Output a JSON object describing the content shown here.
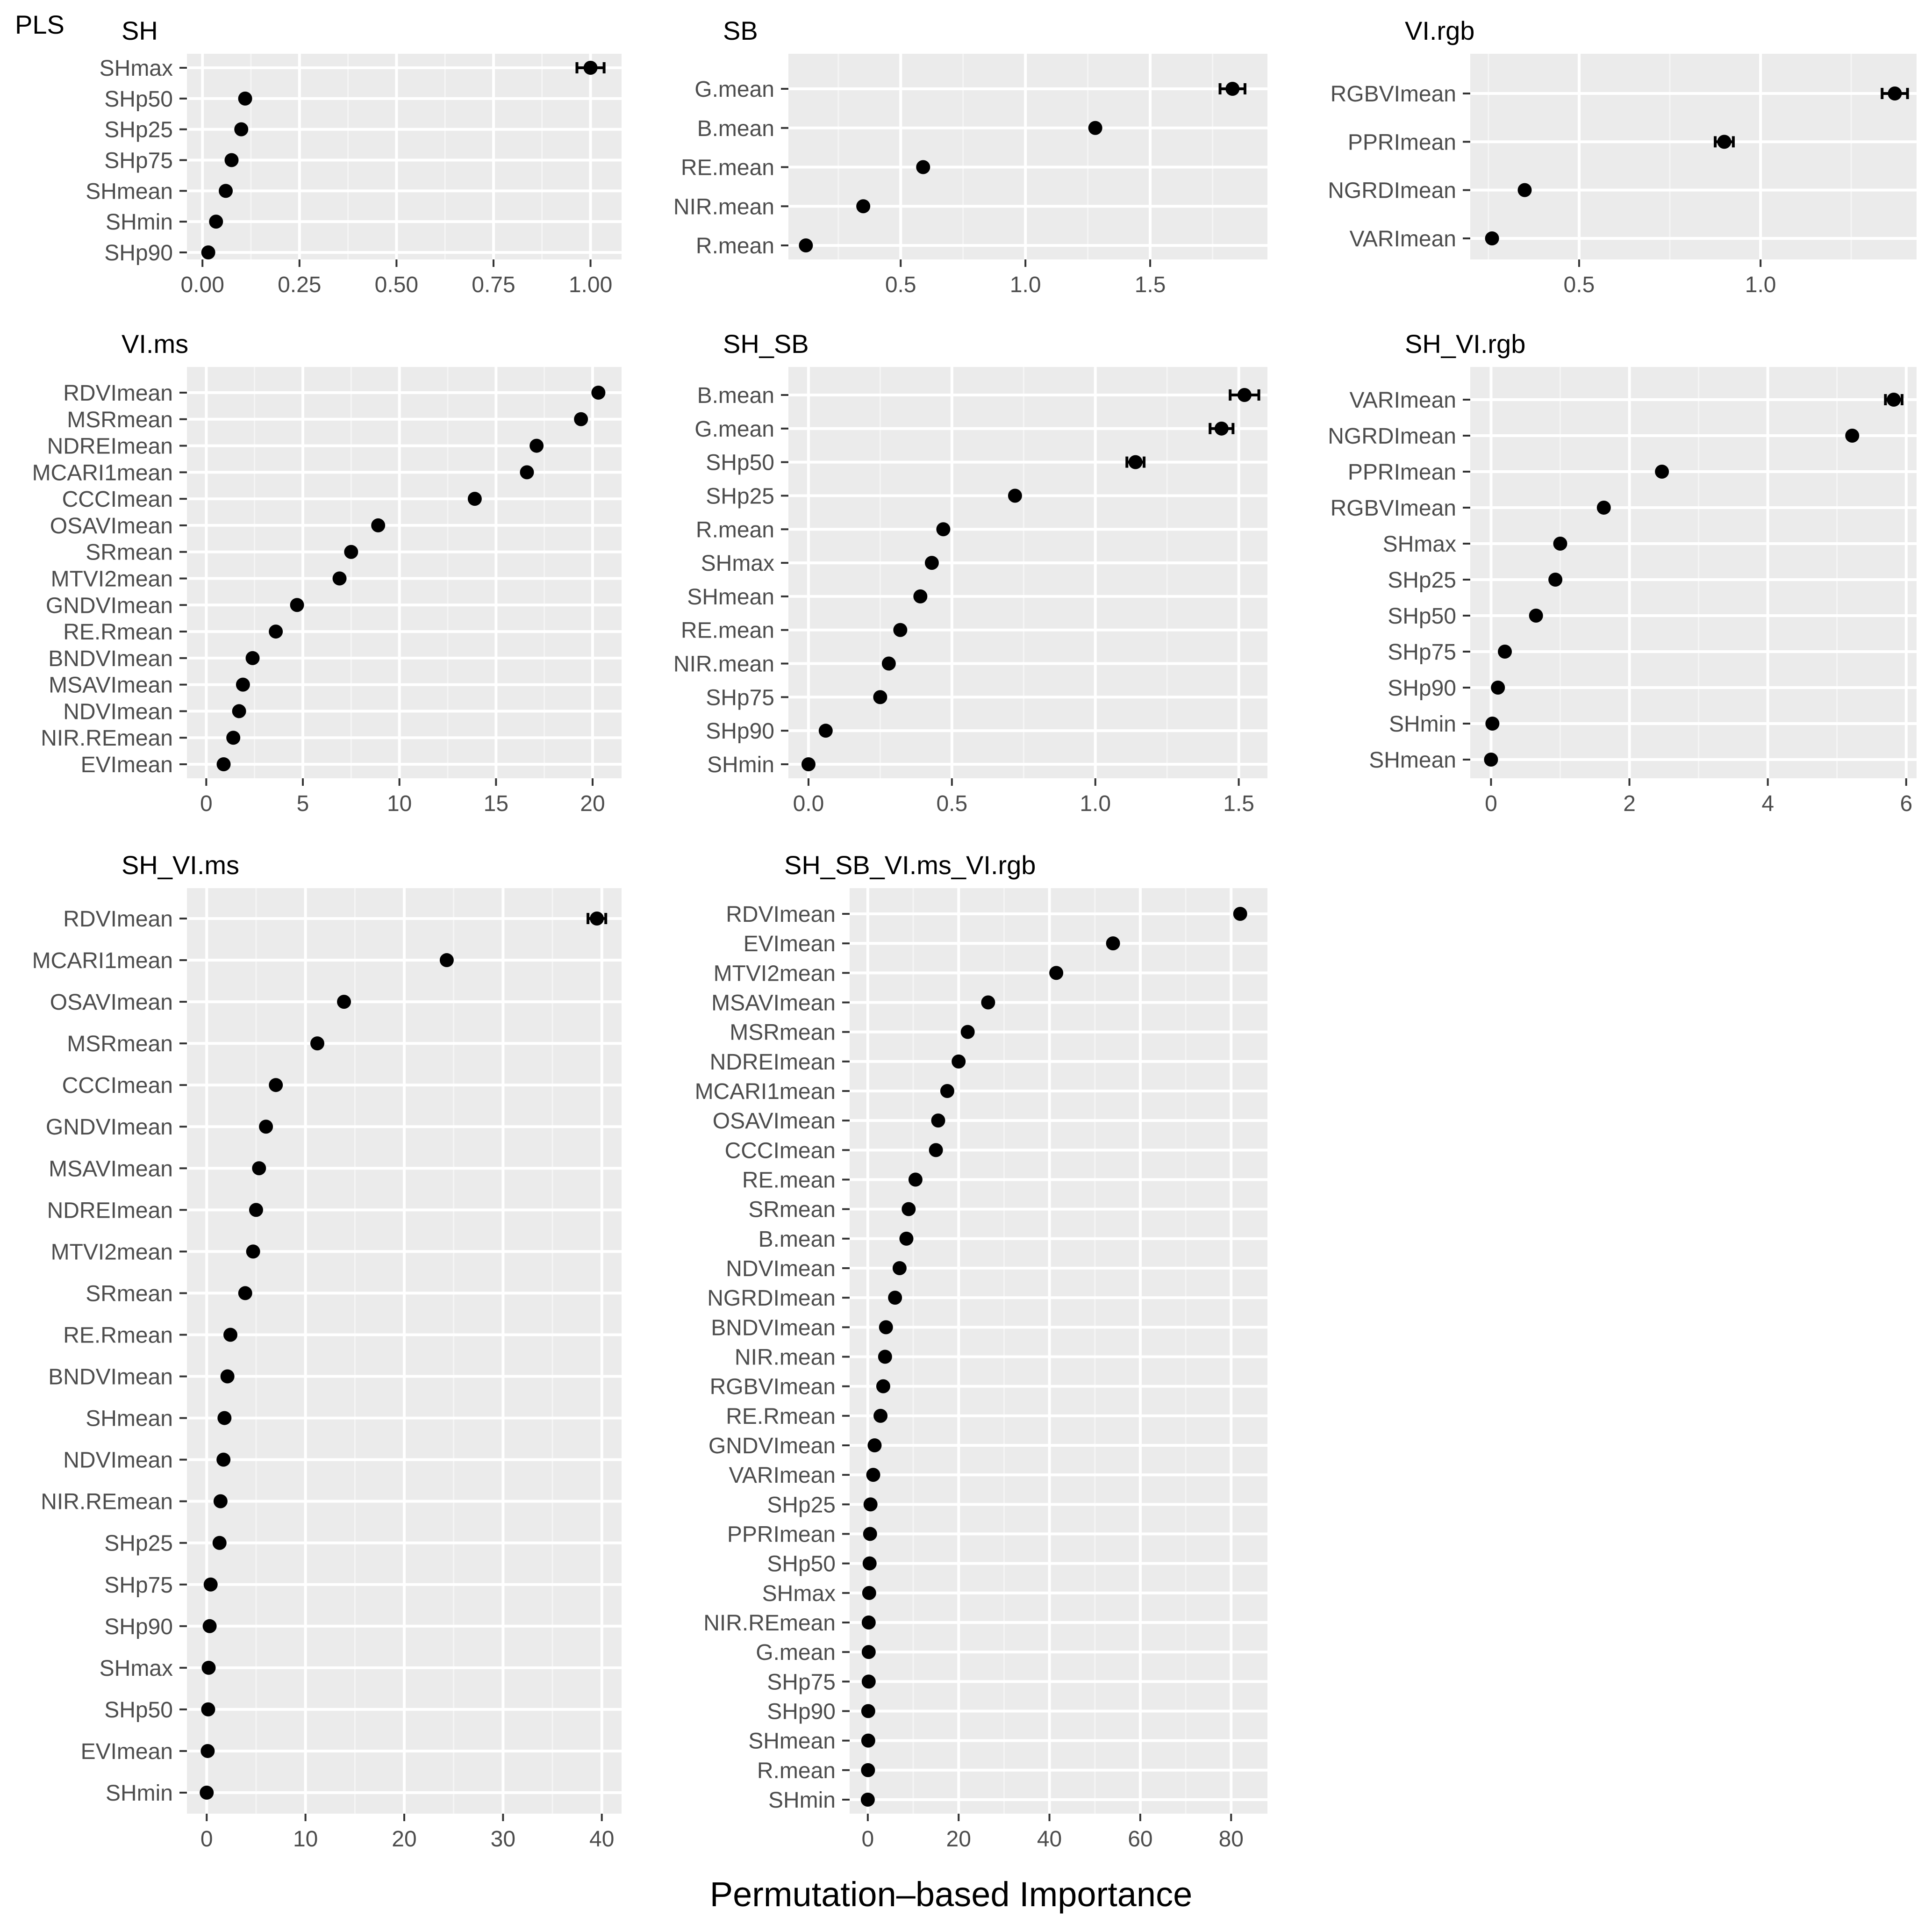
{
  "figure": {
    "tag": "PLS",
    "xlabel": "Permutation–based Importance"
  },
  "colors": {
    "panel_background": "#ebebeb",
    "grid_major": "#ffffff",
    "grid_minor": "#f5f5f5",
    "point": "#000000",
    "label_text": "#4d4d4d",
    "title_text": "#000000"
  },
  "chart_data": [
    {
      "type": "scatter",
      "title": "SH",
      "xlim": [
        -0.04,
        1.08
      ],
      "xticks": [
        0,
        0.25,
        0.5,
        0.75,
        1.0
      ],
      "xtick_labels": [
        "0.00",
        "0.25",
        "0.50",
        "0.75",
        "1.00"
      ],
      "features": [
        "SHmax",
        "SHp50",
        "SHp25",
        "SHp75",
        "SHmean",
        "SHmin",
        "SHp90"
      ],
      "values": [
        1.0,
        0.11,
        0.1,
        0.075,
        0.06,
        0.035,
        0.015
      ],
      "error": [
        0.035,
        0,
        0,
        0,
        0,
        0,
        0
      ]
    },
    {
      "type": "scatter",
      "title": "SB",
      "xlim": [
        0.05,
        1.97
      ],
      "xticks": [
        0.5,
        1.0,
        1.5
      ],
      "xtick_labels": [
        "0.5",
        "1.0",
        "1.5"
      ],
      "features": [
        "G.mean",
        "B.mean",
        "RE.mean",
        "NIR.mean",
        "R.mean"
      ],
      "values": [
        1.83,
        1.28,
        0.59,
        0.35,
        0.12
      ],
      "error": [
        0.05,
        0,
        0,
        0,
        0
      ]
    },
    {
      "type": "scatter",
      "title": "VI.rgb",
      "xlim": [
        0.2,
        1.43
      ],
      "xticks": [
        0.5,
        1.0
      ],
      "xtick_labels": [
        "0.5",
        "1.0"
      ],
      "features": [
        "RGBVImean",
        "PPRImean",
        "NGRDImean",
        "VARImean"
      ],
      "values": [
        1.37,
        0.9,
        0.35,
        0.26
      ],
      "error": [
        0.035,
        0.025,
        0,
        0
      ]
    },
    {
      "type": "scatter",
      "title": "VI.ms",
      "xlim": [
        -1,
        21.5
      ],
      "xticks": [
        0,
        5,
        10,
        15,
        20
      ],
      "xtick_labels": [
        "0",
        "5",
        "10",
        "15",
        "20"
      ],
      "features": [
        "RDVImean",
        "MSRmean",
        "NDREImean",
        "MCARI1mean",
        "CCCImean",
        "OSAVImean",
        "SRmean",
        "MTVI2mean",
        "GNDVImean",
        "RE.Rmean",
        "BNDVImean",
        "MSAVImean",
        "NDVImean",
        "NIR.REmean",
        "EVImean"
      ],
      "values": [
        20.3,
        19.4,
        17.1,
        16.6,
        13.9,
        8.9,
        7.5,
        6.9,
        4.7,
        3.6,
        2.4,
        1.9,
        1.7,
        1.4,
        0.9
      ],
      "error": [
        0,
        0,
        0,
        0,
        0,
        0,
        0,
        0,
        0,
        0,
        0,
        0,
        0,
        0,
        0
      ]
    },
    {
      "type": "scatter",
      "title": "SH_SB",
      "xlim": [
        -0.07,
        1.6
      ],
      "xticks": [
        0,
        0.5,
        1.0,
        1.5
      ],
      "xtick_labels": [
        "0.0",
        "0.5",
        "1.0",
        "1.5"
      ],
      "features": [
        "B.mean",
        "G.mean",
        "SHp50",
        "SHp25",
        "R.mean",
        "SHmax",
        "SHmean",
        "RE.mean",
        "NIR.mean",
        "SHp75",
        "SHp90",
        "SHmin"
      ],
      "values": [
        1.52,
        1.44,
        1.14,
        0.72,
        0.47,
        0.43,
        0.39,
        0.32,
        0.28,
        0.25,
        0.06,
        0.0
      ],
      "error": [
        0.05,
        0.04,
        0.03,
        0,
        0,
        0,
        0,
        0,
        0,
        0,
        0,
        0
      ]
    },
    {
      "type": "scatter",
      "title": "SH_VI.rgb",
      "xlim": [
        -0.3,
        6.15
      ],
      "xticks": [
        0,
        2,
        4,
        6
      ],
      "xtick_labels": [
        "0",
        "2",
        "4",
        "6"
      ],
      "features": [
        "VARImean",
        "NGRDImean",
        "PPRImean",
        "RGBVImean",
        "SHmax",
        "SHp25",
        "SHp50",
        "SHp75",
        "SHp90",
        "SHmin",
        "SHmean"
      ],
      "values": [
        5.82,
        5.22,
        2.47,
        1.63,
        1.0,
        0.93,
        0.65,
        0.2,
        0.1,
        0.02,
        0.0
      ],
      "error": [
        0.12,
        0,
        0,
        0,
        0,
        0,
        0,
        0,
        0,
        0,
        0
      ]
    },
    {
      "type": "scatter",
      "title": "SH_VI.ms",
      "xlim": [
        -2,
        42
      ],
      "xticks": [
        0,
        10,
        20,
        30,
        40
      ],
      "xtick_labels": [
        "0",
        "10",
        "20",
        "30",
        "40"
      ],
      "features": [
        "RDVImean",
        "MCARI1mean",
        "OSAVImean",
        "MSRmean",
        "CCCImean",
        "GNDVImean",
        "MSAVImean",
        "NDREImean",
        "MTVI2mean",
        "SRmean",
        "RE.Rmean",
        "BNDVImean",
        "SHmean",
        "NDVImean",
        "NIR.REmean",
        "SHp25",
        "SHp75",
        "SHp90",
        "SHmax",
        "SHp50",
        "EVImean",
        "SHmin"
      ],
      "values": [
        39.5,
        24.3,
        13.9,
        11.2,
        7.0,
        6.0,
        5.3,
        5.0,
        4.7,
        3.9,
        2.4,
        2.1,
        1.8,
        1.7,
        1.4,
        1.3,
        0.4,
        0.3,
        0.2,
        0.15,
        0.1,
        0.0
      ],
      "error": [
        0.9,
        0,
        0,
        0,
        0,
        0,
        0,
        0,
        0,
        0,
        0,
        0,
        0,
        0,
        0,
        0,
        0,
        0,
        0,
        0,
        0,
        0
      ]
    },
    {
      "type": "scatter",
      "title": "SH_SB_VI.ms_VI.rgb",
      "xlim": [
        -4,
        88
      ],
      "xticks": [
        0,
        20,
        40,
        60,
        80
      ],
      "xtick_labels": [
        "0",
        "20",
        "40",
        "60",
        "80"
      ],
      "features": [
        "RDVImean",
        "EVImean",
        "MTVI2mean",
        "MSAVImean",
        "MSRmean",
        "NDREImean",
        "MCARI1mean",
        "OSAVImean",
        "CCCImean",
        "RE.mean",
        "SRmean",
        "B.mean",
        "NDVImean",
        "NGRDImean",
        "BNDVImean",
        "NIR.mean",
        "RGBVImean",
        "RE.Rmean",
        "GNDVImean",
        "VARImean",
        "SHp25",
        "PPRImean",
        "SHp50",
        "SHmax",
        "NIR.REmean",
        "G.mean",
        "SHp75",
        "SHp90",
        "SHmean",
        "R.mean",
        "SHmin"
      ],
      "values": [
        82,
        54,
        41.5,
        26.5,
        22,
        20,
        17.5,
        15.5,
        15,
        10.5,
        9,
        8.5,
        7,
        6,
        4,
        3.8,
        3.4,
        2.8,
        1.5,
        1.2,
        0.6,
        0.5,
        0.4,
        0.3,
        0.2,
        0.2,
        0.2,
        0.1,
        0.1,
        0.05,
        0.0
      ],
      "error": [
        0,
        0,
        0,
        0,
        0,
        0,
        0,
        0,
        0,
        0,
        0,
        0,
        0,
        0,
        0,
        0,
        0,
        0,
        0,
        0,
        0,
        0,
        0,
        0,
        0,
        0,
        0,
        0,
        0,
        0,
        0
      ]
    }
  ]
}
